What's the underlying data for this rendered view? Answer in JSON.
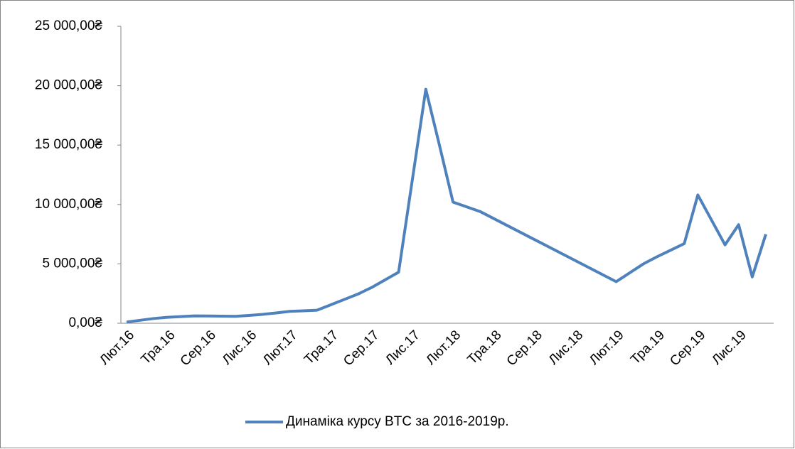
{
  "chart_data": {
    "type": "line",
    "categories": [
      "Лют.16",
      null,
      null,
      "Тра.16",
      null,
      null,
      "Сер.16",
      null,
      null,
      "Лис.16",
      null,
      null,
      "Лют.17",
      null,
      null,
      "Тра.17",
      null,
      null,
      "Сер.17",
      null,
      null,
      "Лис.17",
      null,
      null,
      "Лют.18",
      null,
      null,
      "Тра.18",
      null,
      null,
      "Сер.18",
      null,
      null,
      "Лис.18",
      null,
      null,
      "Лют.19",
      null,
      null,
      "Тра.19",
      null,
      null,
      "Сер.19",
      null,
      null,
      "Лис.19",
      null,
      null
    ],
    "series": [
      {
        "name": "Динаміка курсу BTC за 2016-2019р.",
        "color": "#4f81bd",
        "values": [
          100,
          250,
          400,
          500,
          560,
          620,
          610,
          595,
          580,
          660,
          750,
          870,
          1000,
          1050,
          1100,
          1550,
          2000,
          2450,
          3000,
          3650,
          4300,
          12000,
          19700,
          15000,
          10200,
          9800,
          9400,
          8810,
          8220,
          7630,
          7040,
          6450,
          5860,
          5270,
          4680,
          4090,
          3500,
          4250,
          5000,
          5600,
          6150,
          6700,
          10800,
          8700,
          6600,
          8300,
          3900,
          7500
        ]
      }
    ],
    "ylim": [
      0,
      25000
    ],
    "yticks": [
      {
        "value": 0,
        "label": "0,00₴"
      },
      {
        "value": 5000,
        "label": "5 000,00₴"
      },
      {
        "value": 10000,
        "label": "10 000,00₴"
      },
      {
        "value": 15000,
        "label": "15 000,00₴"
      },
      {
        "value": 20000,
        "label": "20 000,00₴"
      },
      {
        "value": 25000,
        "label": "25 000,00₴"
      }
    ],
    "legend": "bottom"
  }
}
